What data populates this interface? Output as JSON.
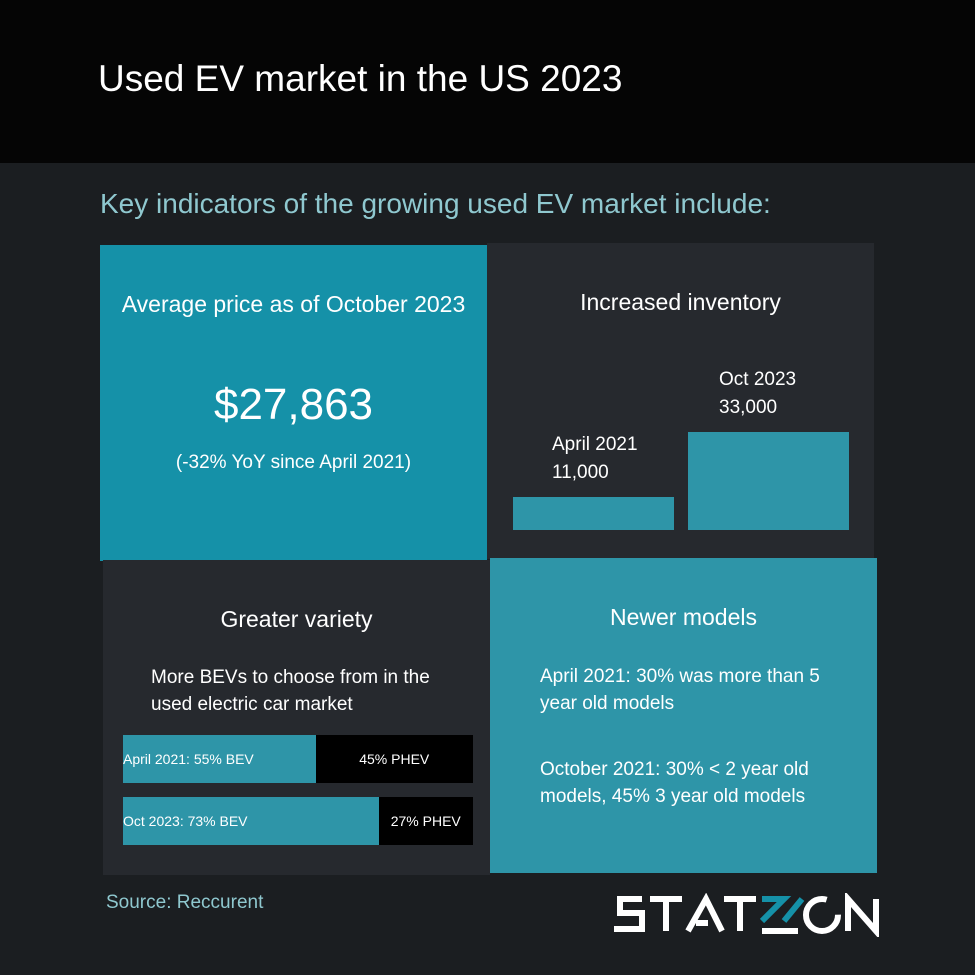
{
  "header": {
    "title": "Used EV market in the US 2023"
  },
  "subtitle": "Key indicators of the growing used EV market include:",
  "price": {
    "title": "Average price as of October 2023",
    "value": "$27,863",
    "note": "(-32% YoY since April 2021)"
  },
  "inventory": {
    "title": "Increased inventory",
    "bars": [
      {
        "label": "April 2021",
        "value_label": "11,000"
      },
      {
        "label": "Oct 2023",
        "value_label": "33,000"
      }
    ]
  },
  "variety": {
    "title": "Greater variety",
    "desc": "More BEVs to choose from in the used electric car market",
    "rows": [
      {
        "bev_label": "April 2021: 55% BEV",
        "phev_label": "45% PHEV"
      },
      {
        "bev_label": "Oct 2023: 73% BEV",
        "phev_label": "27% PHEV"
      }
    ]
  },
  "newer": {
    "title": "Newer models",
    "p1": "April 2021: 30% was more than 5 year old models",
    "p2": "October 2021: 30% < 2 year old models, 45% 3 year old models"
  },
  "source": "Source: Reccurent",
  "logo": "STATZON",
  "colors": {
    "accent": "#1591a8",
    "teal": "#2e95a8",
    "tile": "#26292e",
    "bg": "#1b1e21"
  },
  "chart_data": [
    {
      "type": "bar",
      "title": "Increased inventory",
      "categories": [
        "April 2021",
        "Oct 2023"
      ],
      "values": [
        11000,
        33000
      ]
    },
    {
      "type": "bar",
      "title": "Greater variety",
      "categories": [
        "April 2021",
        "Oct 2023"
      ],
      "series": [
        {
          "name": "BEV",
          "values": [
            55,
            73
          ]
        },
        {
          "name": "PHEV",
          "values": [
            45,
            27
          ]
        }
      ],
      "stacked": true
    }
  ]
}
